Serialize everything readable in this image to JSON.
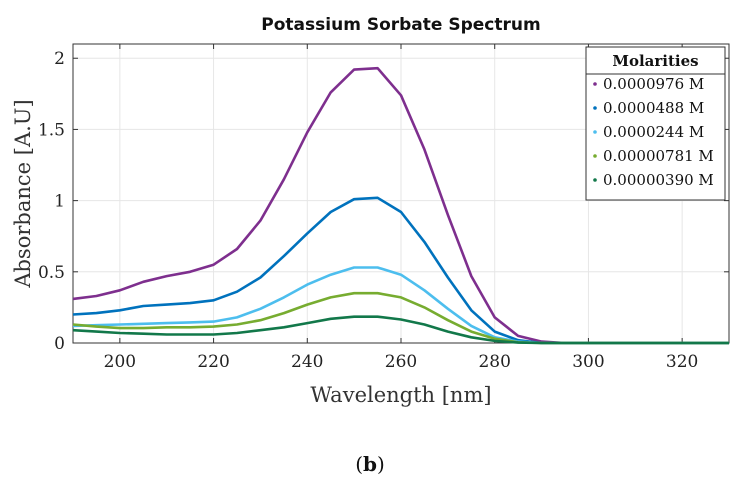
{
  "chart_data": {
    "type": "line",
    "title": "Potassium Sorbate Spectrum",
    "xlabel": "Wavelength [nm]",
    "ylabel": "Absorbance [A.U]",
    "xlim": [
      190,
      330
    ],
    "ylim": [
      0,
      2.1
    ],
    "xticks": [
      200,
      220,
      240,
      260,
      280,
      300,
      320
    ],
    "yticks": [
      0,
      0.5,
      1,
      1.5,
      2
    ],
    "ytick_labels": [
      "0",
      "0.5",
      "1",
      "1.5",
      "2"
    ],
    "grid": true,
    "legend": {
      "title": "Molarities",
      "position": "top-right"
    },
    "x": [
      190,
      195,
      200,
      205,
      210,
      215,
      220,
      225,
      230,
      235,
      240,
      245,
      250,
      255,
      260,
      265,
      270,
      275,
      280,
      285,
      290,
      295,
      300,
      305,
      310,
      315,
      320,
      325,
      330
    ],
    "series": [
      {
        "name": "0.0000976 M",
        "color": "#7e2f8e",
        "values": [
          0.31,
          0.33,
          0.37,
          0.43,
          0.47,
          0.5,
          0.55,
          0.66,
          0.86,
          1.15,
          1.48,
          1.76,
          1.92,
          1.93,
          1.74,
          1.36,
          0.9,
          0.47,
          0.18,
          0.05,
          0.01,
          0.0,
          0.0,
          0.0,
          0.0,
          0.0,
          0.0,
          0.0,
          0.0
        ]
      },
      {
        "name": "0.0000488 M",
        "color": "#0072bd",
        "values": [
          0.2,
          0.21,
          0.23,
          0.26,
          0.27,
          0.28,
          0.3,
          0.36,
          0.46,
          0.61,
          0.77,
          0.92,
          1.01,
          1.02,
          0.92,
          0.71,
          0.46,
          0.23,
          0.08,
          0.02,
          0.0,
          0.0,
          0.0,
          0.0,
          0.0,
          0.0,
          0.0,
          0.0,
          0.0
        ]
      },
      {
        "name": "0.0000244 M",
        "color": "#4dbeee",
        "values": [
          0.12,
          0.125,
          0.13,
          0.135,
          0.14,
          0.145,
          0.15,
          0.18,
          0.24,
          0.32,
          0.41,
          0.48,
          0.53,
          0.53,
          0.48,
          0.37,
          0.24,
          0.12,
          0.04,
          0.01,
          0.0,
          0.0,
          0.0,
          0.0,
          0.0,
          0.0,
          0.0,
          0.0,
          0.0
        ]
      },
      {
        "name": "0.00000781 M",
        "color": "#77ac30",
        "values": [
          0.13,
          0.115,
          0.105,
          0.105,
          0.11,
          0.11,
          0.115,
          0.13,
          0.16,
          0.21,
          0.27,
          0.32,
          0.35,
          0.35,
          0.32,
          0.25,
          0.16,
          0.08,
          0.03,
          0.005,
          0.0,
          0.0,
          0.0,
          0.0,
          0.0,
          0.0,
          0.0,
          0.0,
          0.0
        ]
      },
      {
        "name": "0.00000390 M",
        "color": "#12784a",
        "values": [
          0.09,
          0.08,
          0.07,
          0.065,
          0.06,
          0.06,
          0.06,
          0.07,
          0.09,
          0.11,
          0.14,
          0.17,
          0.185,
          0.185,
          0.165,
          0.13,
          0.08,
          0.04,
          0.015,
          0.003,
          0.0,
          0.0,
          0.0,
          0.0,
          0.0,
          0.0,
          0.0,
          0.0,
          0.0
        ]
      }
    ]
  },
  "caption": {
    "prefix": "(",
    "letter": "b",
    "suffix": ")"
  }
}
